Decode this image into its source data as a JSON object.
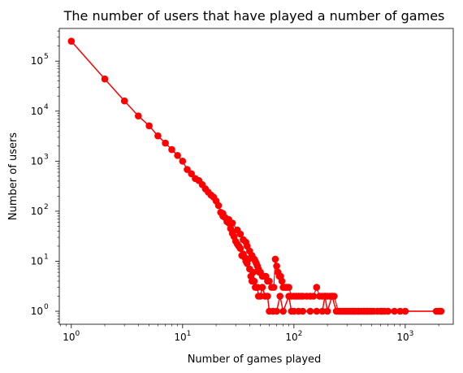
{
  "chart_data": {
    "type": "line",
    "title": "The number of users that have played a number of games",
    "xlabel": "Number of games played",
    "ylabel": "Number of users",
    "xscale": "log",
    "yscale": "log",
    "xlim": [
      0.78,
      2700
    ],
    "ylim": [
      0.55,
      450000
    ],
    "x_ticks": [
      {
        "value": 1,
        "base": "10",
        "exp": "0"
      },
      {
        "value": 10,
        "base": "10",
        "exp": "1"
      },
      {
        "value": 100,
        "base": "10",
        "exp": "2"
      },
      {
        "value": 1000,
        "base": "10",
        "exp": "3"
      }
    ],
    "y_ticks": [
      {
        "value": 1,
        "base": "10",
        "exp": "0"
      },
      {
        "value": 10,
        "base": "10",
        "exp": "1"
      },
      {
        "value": 100,
        "base": "10",
        "exp": "2"
      },
      {
        "value": 1000,
        "base": "10",
        "exp": "3"
      },
      {
        "value": 10000,
        "base": "10",
        "exp": "4"
      },
      {
        "value": 100000,
        "base": "10",
        "exp": "5"
      }
    ],
    "grid": false,
    "color": "#ff0000",
    "series": [
      {
        "x": [
          1,
          2,
          3,
          4,
          5,
          6,
          7,
          8,
          9,
          10,
          11,
          12,
          13,
          14,
          15,
          16,
          17,
          18,
          19,
          20,
          21,
          22,
          23,
          24,
          25,
          26,
          27,
          28,
          29,
          30,
          31,
          32,
          33,
          34,
          35,
          36,
          37,
          38,
          39,
          40,
          41,
          42,
          43,
          44,
          45,
          46,
          47,
          48,
          50,
          52,
          55,
          58,
          60,
          65,
          70,
          75,
          80,
          90,
          95,
          100,
          110,
          120,
          140,
          160,
          180,
          190,
          200,
          220,
          240,
          260,
          280,
          300,
          320,
          350,
          380,
          420,
          460,
          500,
          600,
          650,
          900,
          2000,
          2100
        ],
        "y": [
          250000,
          44000,
          16000,
          8000,
          5100,
          3200,
          2300,
          1700,
          1300,
          1000,
          680,
          560,
          450,
          410,
          340,
          280,
          240,
          210,
          190,
          160,
          130,
          95,
          80,
          75,
          62,
          58,
          45,
          36,
          31,
          25,
          22,
          20,
          18,
          13,
          14,
          12,
          10,
          9,
          11,
          7,
          5,
          4,
          6,
          4,
          3,
          3,
          3,
          2,
          2,
          3,
          2,
          2,
          1,
          1,
          1,
          2,
          1,
          2,
          1,
          1,
          1,
          1,
          1,
          1,
          1,
          2,
          1,
          2,
          1,
          1,
          1,
          1,
          1,
          1,
          1,
          1,
          1,
          1,
          1,
          1,
          1,
          1,
          1
        ]
      }
    ],
    "extra_points": {
      "x": [
        23,
        26,
        28,
        31,
        33,
        35,
        37,
        38,
        40,
        42,
        44,
        45,
        46,
        47,
        48,
        49,
        50,
        52,
        54,
        56,
        58,
        60,
        63,
        66,
        68,
        70,
        72,
        74,
        76,
        78,
        80,
        83,
        86,
        90,
        95,
        100,
        105,
        110,
        115,
        120,
        130,
        140,
        150,
        160,
        170,
        180,
        190,
        200,
        210,
        220,
        230,
        250,
        270,
        290,
        310,
        330,
        340,
        360,
        380,
        400,
        430,
        450,
        480,
        520,
        560,
        620,
        700,
        800,
        1000,
        1900,
        2050
      ],
      "y": [
        90,
        68,
        58,
        42,
        35,
        27,
        24,
        20,
        16,
        13,
        11,
        10,
        9,
        8,
        7,
        6,
        6,
        5,
        5,
        5,
        4,
        4,
        3,
        3,
        11,
        8,
        6,
        5,
        5,
        4,
        3,
        3,
        3,
        3,
        2,
        2,
        2,
        2,
        2,
        2,
        2,
        2,
        2,
        3,
        2,
        2,
        2,
        2,
        2,
        2,
        2,
        1,
        1,
        1,
        1,
        1,
        1,
        1,
        1,
        1,
        1,
        1,
        1,
        1,
        1,
        1,
        1,
        1,
        1,
        1,
        1
      ]
    }
  }
}
